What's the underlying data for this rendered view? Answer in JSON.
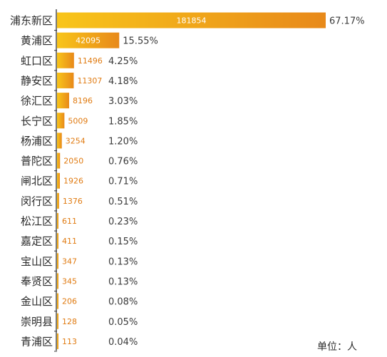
{
  "chart_data": {
    "type": "bar",
    "orientation": "horizontal",
    "categories": [
      "浦东新区",
      "黄浦区",
      "虹口区",
      "静安区",
      "徐汇区",
      "长宁区",
      "杨浦区",
      "普陀区",
      "闸北区",
      "闵行区",
      "松江区",
      "嘉定区",
      "宝山区",
      "奉贤区",
      "金山区",
      "崇明县",
      "青浦区"
    ],
    "values": [
      181854,
      42095,
      11496,
      11307,
      8196,
      5009,
      3254,
      2050,
      1926,
      1376,
      611,
      411,
      347,
      345,
      206,
      128,
      113
    ],
    "percent_labels": [
      "67.17%",
      "15.55%",
      "4.25%",
      "4.18%",
      "3.03%",
      "1.85%",
      "1.20%",
      "0.76%",
      "0.71%",
      "0.51%",
      "0.23%",
      "0.15%",
      "0.13%",
      "0.13%",
      "0.08%",
      "0.05%",
      "0.04%"
    ],
    "unit_label": "单位：人",
    "xlim": [
      0,
      181854
    ],
    "grid": false,
    "colors": {
      "bar_start": "#f8c51a",
      "bar_end": "#e8891a",
      "value_label_outside": "#e07b12",
      "value_label_inside": "#ffffff",
      "text": "#2b2b2b"
    }
  }
}
